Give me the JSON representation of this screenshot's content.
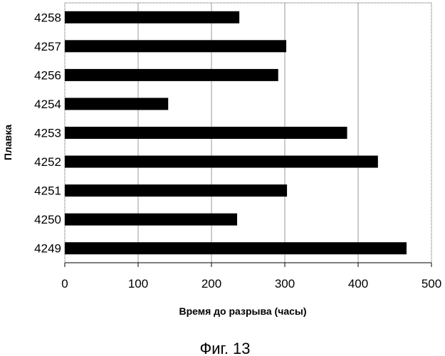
{
  "chart_data": {
    "type": "bar",
    "orientation": "horizontal",
    "categories": [
      "4258",
      "4257",
      "4256",
      "4254",
      "4253",
      "4252",
      "4251",
      "4250",
      "4249"
    ],
    "values": [
      238,
      302,
      291,
      141,
      385,
      427,
      303,
      235,
      466
    ],
    "xlabel": "Время до разрыва (часы)",
    "ylabel": "Плавка",
    "xlim": [
      0,
      500
    ],
    "xticks": [
      "0",
      "100",
      "200",
      "300",
      "400",
      "500"
    ],
    "grid": "vertical",
    "bar_color": "#000000"
  },
  "caption": "Фиг. 13"
}
